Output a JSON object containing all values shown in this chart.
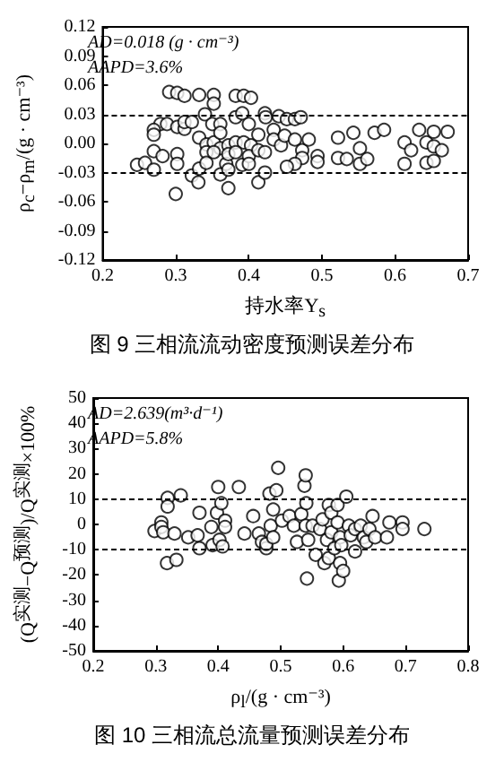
{
  "chart_data": [
    {
      "type": "scatter",
      "title": "图 9 三相流流动密度预测误差分布",
      "xlabel": "持水率Y$_{s}$",
      "ylabel": "ρ$_{c}$−ρ$_{m}$/(g · cm⁻³)",
      "annotations": [
        "AD=0.018 (g · cm⁻³)",
        "AAPD=3.6%"
      ],
      "marker": "circle",
      "color": "#000000",
      "x": [
        0.291,
        0.302,
        0.312,
        0.332,
        0.352,
        0.352,
        0.382,
        0.393,
        0.403,
        0.34,
        0.35,
        0.361,
        0.382,
        0.391,
        0.4,
        0.422,
        0.423,
        0.441,
        0.452,
        0.463,
        0.471,
        0.279,
        0.27,
        0.27,
        0.288,
        0.302,
        0.312,
        0.312,
        0.322,
        0.332,
        0.342,
        0.352,
        0.361,
        0.372,
        0.382,
        0.393,
        0.403,
        0.413,
        0.434,
        0.434,
        0.444,
        0.449,
        0.463,
        0.473,
        0.482,
        0.473,
        0.463,
        0.452,
        0.494,
        0.494,
        0.522,
        0.522,
        0.534,
        0.543,
        0.552,
        0.552,
        0.562,
        0.572,
        0.585,
        0.613,
        0.622,
        0.613,
        0.633,
        0.643,
        0.653,
        0.672,
        0.653,
        0.664,
        0.643,
        0.653,
        0.247,
        0.258,
        0.27,
        0.27,
        0.282,
        0.302,
        0.302,
        0.3,
        0.322,
        0.331,
        0.332,
        0.342,
        0.342,
        0.352,
        0.361,
        0.369,
        0.372,
        0.372,
        0.372,
        0.382,
        0.391,
        0.4,
        0.4,
        0.413,
        0.422,
        0.413,
        0.422,
        0.361
      ],
      "values": [
        0.053,
        0.052,
        0.049,
        0.05,
        0.05,
        0.041,
        0.049,
        0.049,
        0.047,
        0.03,
        0.02,
        0.02,
        0.027,
        0.031,
        0.02,
        0.031,
        0.027,
        0.028,
        0.025,
        0.025,
        0.027,
        0.02,
        0.014,
        0.009,
        0.02,
        0.017,
        0.015,
        0.022,
        0.022,
        0.006,
        -0.001,
        0.001,
        -0.005,
        -0.002,
        0.001,
        0.001,
        -0.002,
        0.009,
        0.014,
        0.004,
        -0.002,
        0.008,
        0.004,
        -0.007,
        0.004,
        -0.015,
        -0.021,
        -0.024,
        -0.013,
        -0.019,
        0.006,
        -0.015,
        -0.016,
        0.011,
        -0.005,
        -0.021,
        -0.016,
        0.011,
        0.014,
        0.001,
        -0.007,
        -0.021,
        0.014,
        0.001,
        0.012,
        0.012,
        -0.003,
        -0.007,
        -0.02,
        -0.018,
        -0.022,
        -0.02,
        -0.008,
        -0.027,
        -0.013,
        -0.011,
        -0.021,
        -0.052,
        -0.033,
        -0.04,
        -0.026,
        -0.009,
        -0.02,
        -0.009,
        -0.032,
        -0.021,
        -0.011,
        -0.027,
        -0.046,
        -0.009,
        -0.022,
        -0.013,
        -0.021,
        -0.007,
        -0.009,
        -0.04,
        -0.03,
        0.011
      ],
      "xlim": [
        0.2,
        0.7
      ],
      "xticks": [
        0.2,
        0.3,
        0.4,
        0.5,
        0.6,
        0.7
      ],
      "ylim": [
        -0.12,
        0.12
      ],
      "yticks": [
        -0.12,
        -0.09,
        -0.06,
        -0.03,
        {
          "value": 0,
          "label": "0.00"
        },
        0.03,
        0.06,
        0.09,
        0.12
      ],
      "ref_lines": [
        {
          "axis": "y",
          "value": 0.03,
          "line_style": "dashed"
        },
        {
          "axis": "y",
          "value": -0.03,
          "line_style": "dashed"
        }
      ]
    },
    {
      "type": "scatter",
      "title": "图 10 三相流总流量预测误差分布",
      "xlabel": "ρ$_{l}$/(g · cm⁻³)",
      "ylabel": "(Q$^{实测}$−Q$^{预测}$)/Q$^{实测}$×100%",
      "annotations": [
        "AD=2.639(m³·d⁻¹)",
        "AAPD=5.8%"
      ],
      "marker": "circle",
      "color": "#000000",
      "x": [
        0.298,
        0.309,
        0.309,
        0.312,
        0.319,
        0.319,
        0.34,
        0.318,
        0.333,
        0.33,
        0.352,
        0.37,
        0.367,
        0.37,
        0.389,
        0.391,
        0.4,
        0.398,
        0.402,
        0.405,
        0.411,
        0.411,
        0.407,
        0.433,
        0.442,
        0.456,
        0.465,
        0.47,
        0.477,
        0.477,
        0.482,
        0.493,
        0.496,
        0.488,
        0.484,
        0.488,
        0.502,
        0.514,
        0.521,
        0.526,
        0.533,
        0.538,
        0.54,
        0.541,
        0.54,
        0.544,
        0.542,
        0.551,
        0.556,
        0.563,
        0.567,
        0.57,
        0.574,
        0.577,
        0.581,
        0.577,
        0.581,
        0.586,
        0.591,
        0.591,
        0.595,
        0.597,
        0.595,
        0.593,
        0.6,
        0.605,
        0.609,
        0.612,
        0.619,
        0.619,
        0.628,
        0.633,
        0.637,
        0.642,
        0.647,
        0.651,
        0.67,
        0.674,
        0.695,
        0.695,
        0.73
      ],
      "values": [
        -2.6,
        0.8,
        -1.0,
        -3.1,
        10.5,
        7.1,
        11.5,
        -15.3,
        -14.0,
        -3.6,
        -5.1,
        4.6,
        -4.3,
        -9.4,
        -1.0,
        -8.2,
        14.8,
        4.6,
        -6.1,
        8.4,
        1.5,
        -1.0,
        -8.7,
        14.8,
        -3.6,
        3.3,
        -3.6,
        -6.9,
        -9.4,
        -7.7,
        12.2,
        13.5,
        22.4,
        5.9,
        -0.5,
        -5.1,
        1.5,
        3.3,
        -0.5,
        -6.9,
        4.1,
        15.3,
        19.4,
        8.4,
        -0.5,
        -6.1,
        -21.4,
        -0.5,
        -12.0,
        -1.8,
        2.0,
        -15.3,
        -6.1,
        7.7,
        4.6,
        -13.3,
        -3.1,
        -9.4,
        0.8,
        7.7,
        -5.1,
        -8.2,
        -15.3,
        -22.2,
        -18.4,
        11.0,
        -0.5,
        -4.3,
        -1.8,
        -10.7,
        -0.5,
        -5.1,
        -6.9,
        -1.8,
        3.3,
        -5.1,
        -5.1,
        0.8,
        0.8,
        -1.8,
        -1.8
      ],
      "xlim": [
        0.2,
        0.8
      ],
      "xticks": [
        0.2,
        0.3,
        0.4,
        0.5,
        0.6,
        0.7,
        0.8
      ],
      "ylim": [
        -50,
        50
      ],
      "yticks": [
        -50,
        -40,
        -30,
        -20,
        -10,
        0,
        10,
        20,
        30,
        40,
        50
      ],
      "ref_lines": [
        {
          "axis": "y",
          "value": 10,
          "line_style": "dashed"
        },
        {
          "axis": "y",
          "value": -10,
          "line_style": "dashed"
        }
      ]
    }
  ]
}
